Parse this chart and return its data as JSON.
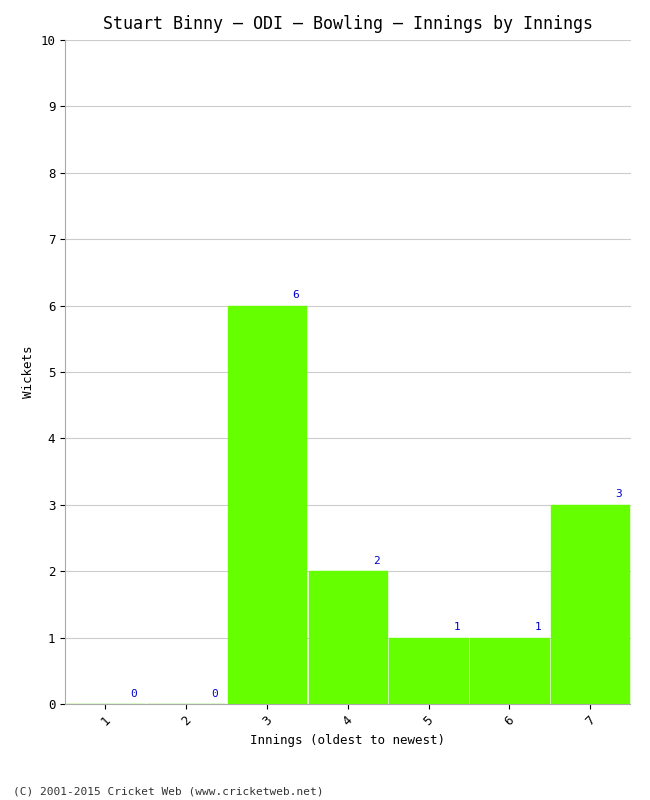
{
  "title": "Stuart Binny – ODI – Bowling – Innings by Innings",
  "xlabel": "Innings (oldest to newest)",
  "ylabel": "Wickets",
  "categories": [
    "1",
    "2",
    "3",
    "4",
    "5",
    "6",
    "7"
  ],
  "values": [
    0,
    0,
    6,
    2,
    1,
    1,
    3
  ],
  "bar_color": "#66ff00",
  "bar_edge_color": "#66ff00",
  "ylim": [
    0,
    10
  ],
  "yticks": [
    0,
    1,
    2,
    3,
    4,
    5,
    6,
    7,
    8,
    9,
    10
  ],
  "background_color": "#ffffff",
  "grid_color": "#cccccc",
  "title_fontsize": 12,
  "label_fontsize": 9,
  "annotation_color": "#0000cc",
  "annotation_fontsize": 8,
  "footer": "(C) 2001-2015 Cricket Web (www.cricketweb.net)"
}
